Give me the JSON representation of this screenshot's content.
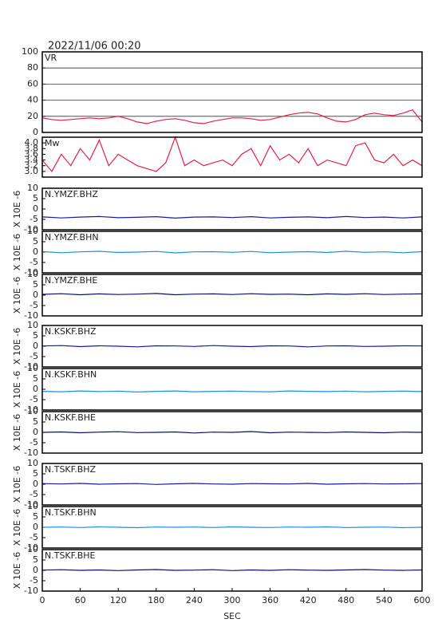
{
  "chart_data": [
    {
      "type": "line",
      "title": "2022/11/06 00:20",
      "grid": true,
      "x": [
        0,
        15,
        30,
        45,
        60,
        75,
        90,
        105,
        120,
        135,
        150,
        165,
        180,
        195,
        210,
        225,
        240,
        255,
        270,
        285,
        300,
        315,
        330,
        345,
        360,
        375,
        390,
        405,
        420,
        435,
        450,
        465,
        480,
        495,
        510,
        525,
        540,
        555,
        570,
        585,
        600
      ],
      "xlim": [
        0,
        600
      ],
      "ylim": [
        0,
        100
      ],
      "yticks": [
        0,
        20,
        40,
        60,
        80,
        100
      ],
      "series": [
        {
          "name": "VR",
          "color": "#e0204a",
          "values": [
            18,
            16,
            15,
            16,
            17,
            18,
            17,
            18,
            20,
            17,
            13,
            11,
            14,
            16,
            17,
            15,
            12,
            11,
            14,
            16,
            18,
            18,
            17,
            15,
            16,
            19,
            22,
            24,
            25,
            23,
            18,
            14,
            13,
            16,
            22,
            24,
            22,
            21,
            24,
            28,
            13
          ]
        }
      ]
    },
    {
      "type": "line",
      "grid": false,
      "x": [
        0,
        15,
        30,
        45,
        60,
        75,
        90,
        105,
        120,
        135,
        150,
        165,
        180,
        195,
        210,
        225,
        240,
        255,
        270,
        285,
        300,
        315,
        330,
        345,
        360,
        375,
        390,
        405,
        420,
        435,
        450,
        465,
        480,
        495,
        510,
        525,
        540,
        555,
        570,
        585,
        600
      ],
      "xlim": [
        0,
        600
      ],
      "ylim": [
        2.8,
        4.2
      ],
      "yticks": [
        {
          "value": 3,
          "label": "3.0"
        },
        3.2,
        3.4,
        3.6,
        3.8,
        {
          "value": 4,
          "label": "4.0"
        }
      ],
      "series": [
        {
          "name": "Mw",
          "color": "#e0204a",
          "values": [
            3.4,
            3.0,
            3.6,
            3.2,
            3.8,
            3.4,
            4.1,
            3.2,
            3.6,
            3.4,
            3.2,
            3.1,
            3.0,
            3.3,
            4.2,
            3.2,
            3.4,
            3.2,
            3.3,
            3.4,
            3.2,
            3.6,
            3.8,
            3.2,
            3.9,
            3.4,
            3.6,
            3.3,
            3.8,
            3.2,
            3.4,
            3.3,
            3.2,
            3.9,
            4.0,
            3.4,
            3.3,
            3.6,
            3.2,
            3.4,
            3.2
          ]
        }
      ]
    },
    {
      "type": "line",
      "ylabel": "X 10E -6",
      "x": [
        0,
        30,
        60,
        90,
        120,
        150,
        180,
        210,
        240,
        270,
        300,
        330,
        360,
        390,
        420,
        450,
        480,
        510,
        540,
        570,
        600
      ],
      "xlim": [
        0,
        600
      ],
      "ylim": [
        -10,
        10
      ],
      "yticks": [
        -10,
        -5,
        0,
        5,
        10
      ],
      "series": [
        {
          "name": "N.YMZF.BHZ",
          "color": "#1a1aa0",
          "values": [
            -3.8,
            -4.3,
            -3.9,
            -3.6,
            -4.2,
            -4.0,
            -3.7,
            -4.4,
            -3.9,
            -3.8,
            -4.1,
            -3.7,
            -4.3,
            -4.0,
            -3.8,
            -4.2,
            -3.6,
            -4.1,
            -3.9,
            -4.3,
            -3.8
          ]
        }
      ]
    },
    {
      "type": "line",
      "ylabel": "X 10E -6",
      "x": [
        0,
        30,
        60,
        90,
        120,
        150,
        180,
        210,
        240,
        270,
        300,
        330,
        360,
        390,
        420,
        450,
        480,
        510,
        540,
        570,
        600
      ],
      "xlim": [
        0,
        600
      ],
      "ylim": [
        -10,
        10
      ],
      "yticks": [
        -10,
        -5,
        0,
        5,
        10
      ],
      "series": [
        {
          "name": "N.YMZF.BHN",
          "color": "#1e8fe0",
          "values": [
            0.2,
            -0.3,
            0.1,
            0.4,
            -0.2,
            0.0,
            0.3,
            -0.4,
            0.1,
            0.2,
            -0.1,
            0.3,
            -0.3,
            0.0,
            0.2,
            -0.2,
            0.4,
            -0.1,
            0.1,
            -0.3,
            0.2
          ]
        }
      ]
    },
    {
      "type": "line",
      "ylabel": "X 10E -6",
      "x": [
        0,
        30,
        60,
        90,
        120,
        150,
        180,
        210,
        240,
        270,
        300,
        330,
        360,
        390,
        420,
        450,
        480,
        510,
        540,
        570,
        600
      ],
      "xlim": [
        0,
        600
      ],
      "ylim": [
        -10,
        10
      ],
      "yticks": [
        -10,
        -5,
        0,
        5,
        10
      ],
      "series": [
        {
          "name": "N.YMZF.BHE",
          "color": "#101060",
          "values": [
            0.4,
            0.7,
            0.2,
            0.6,
            0.3,
            0.5,
            0.8,
            0.2,
            0.5,
            0.6,
            0.3,
            0.7,
            0.4,
            0.5,
            0.2,
            0.6,
            0.4,
            0.7,
            0.3,
            0.5,
            0.6
          ]
        }
      ]
    },
    {
      "type": "line",
      "ylabel": "X 10E -6",
      "x": [
        0,
        30,
        60,
        90,
        120,
        150,
        180,
        210,
        240,
        270,
        300,
        330,
        360,
        390,
        420,
        450,
        480,
        510,
        540,
        570,
        600
      ],
      "xlim": [
        0,
        600
      ],
      "ylim": [
        -10,
        10
      ],
      "yticks": [
        -10,
        -5,
        0,
        5,
        10
      ],
      "series": [
        {
          "name": "N.KSKF.BHZ",
          "color": "#1a1aa0",
          "values": [
            0.1,
            0.3,
            -0.2,
            0.2,
            0.0,
            -0.3,
            0.2,
            0.1,
            -0.1,
            0.3,
            0.0,
            -0.2,
            0.2,
            0.1,
            -0.3,
            0.1,
            0.2,
            -0.1,
            0.0,
            0.2,
            0.1
          ]
        }
      ]
    },
    {
      "type": "line",
      "ylabel": "X 10E -6",
      "x": [
        0,
        30,
        60,
        90,
        120,
        150,
        180,
        210,
        240,
        270,
        300,
        330,
        360,
        390,
        420,
        450,
        480,
        510,
        540,
        570,
        600
      ],
      "xlim": [
        0,
        600
      ],
      "ylim": [
        -10,
        10
      ],
      "yticks": [
        -10,
        -5,
        0,
        5,
        10
      ],
      "series": [
        {
          "name": "N.KSKF.BHN",
          "color": "#1e8fe0",
          "values": [
            -1.0,
            -1.2,
            -0.8,
            -1.1,
            -0.9,
            -1.3,
            -1.0,
            -0.8,
            -1.2,
            -1.0,
            -0.9,
            -1.1,
            -1.2,
            -0.8,
            -1.0,
            -1.1,
            -0.9,
            -1.2,
            -1.0,
            -0.9,
            -1.1
          ]
        }
      ]
    },
    {
      "type": "line",
      "ylabel": "X 10E -6",
      "x": [
        0,
        30,
        60,
        90,
        120,
        150,
        180,
        210,
        240,
        270,
        300,
        330,
        360,
        390,
        420,
        450,
        480,
        510,
        540,
        570,
        600
      ],
      "xlim": [
        0,
        600
      ],
      "ylim": [
        -10,
        10
      ],
      "yticks": [
        -10,
        -5,
        0,
        5,
        10
      ],
      "series": [
        {
          "name": "N.KSKF.BHE",
          "color": "#101060",
          "values": [
            0.0,
            0.2,
            -0.2,
            0.1,
            0.3,
            -0.1,
            0.0,
            0.2,
            -0.3,
            0.1,
            0.0,
            0.4,
            -0.2,
            0.1,
            0.0,
            -0.1,
            0.2,
            0.0,
            -0.2,
            0.1,
            0.0
          ]
        }
      ]
    },
    {
      "type": "line",
      "ylabel": "X 10E -6",
      "x": [
        0,
        30,
        60,
        90,
        120,
        150,
        180,
        210,
        240,
        270,
        300,
        330,
        360,
        390,
        420,
        450,
        480,
        510,
        540,
        570,
        600
      ],
      "xlim": [
        0,
        600
      ],
      "ylim": [
        -10,
        10
      ],
      "yticks": [
        -10,
        -5,
        0,
        5,
        10
      ],
      "series": [
        {
          "name": "N.TSKF.BHZ",
          "color": "#1a1aa0",
          "values": [
            0.3,
            0.1,
            0.4,
            0.0,
            0.2,
            0.3,
            -0.1,
            0.2,
            0.4,
            0.1,
            0.0,
            0.3,
            0.2,
            0.1,
            0.4,
            0.0,
            0.2,
            0.3,
            0.1,
            0.2,
            0.3
          ]
        }
      ]
    },
    {
      "type": "line",
      "ylabel": "X 10E -6",
      "x": [
        0,
        30,
        60,
        90,
        120,
        150,
        180,
        210,
        240,
        270,
        300,
        330,
        360,
        390,
        420,
        450,
        480,
        510,
        540,
        570,
        600
      ],
      "xlim": [
        0,
        600
      ],
      "ylim": [
        -10,
        10
      ],
      "yticks": [
        -10,
        -5,
        0,
        5,
        10
      ],
      "series": [
        {
          "name": "N.TSKF.BHN",
          "color": "#1e8fe0",
          "values": [
            0.0,
            0.1,
            -0.1,
            0.2,
            0.0,
            -0.2,
            0.1,
            0.0,
            0.1,
            -0.1,
            0.2,
            0.0,
            -0.1,
            0.1,
            0.0,
            0.2,
            -0.1,
            0.0,
            0.1,
            -0.2,
            0.0
          ]
        }
      ]
    },
    {
      "type": "line",
      "ylabel": "X 10E -6",
      "xlabel": "SEC",
      "x": [
        0,
        30,
        60,
        90,
        120,
        150,
        180,
        210,
        240,
        270,
        300,
        330,
        360,
        390,
        420,
        450,
        480,
        510,
        540,
        570,
        600
      ],
      "xlim": [
        0,
        600
      ],
      "ylim": [
        -10,
        10
      ],
      "yticks": [
        -10,
        -5,
        0,
        5,
        10
      ],
      "xticks": [
        0,
        60,
        120,
        180,
        240,
        300,
        360,
        420,
        480,
        540,
        600
      ],
      "series": [
        {
          "name": "N.TSKF.BHE",
          "color": "#101060",
          "values": [
            0.1,
            0.3,
            0.0,
            0.2,
            -0.1,
            0.2,
            0.4,
            0.0,
            0.1,
            0.3,
            -0.1,
            0.2,
            0.0,
            0.3,
            0.1,
            0.0,
            0.2,
            0.4,
            0.1,
            0.0,
            0.2
          ]
        }
      ]
    }
  ]
}
